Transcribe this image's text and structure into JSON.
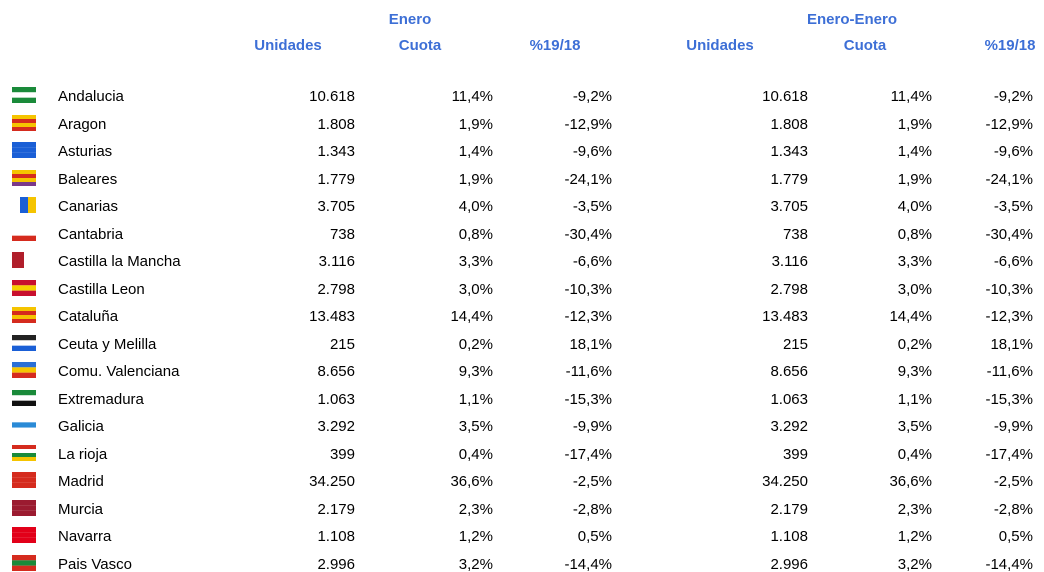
{
  "table": {
    "groups": [
      "Enero",
      "Enero-Enero"
    ],
    "columns": [
      "Unidades",
      "Cuota",
      "%19/18",
      "Unidades",
      "Cuota",
      "%19/18"
    ],
    "rows": [
      [
        "Andalucia",
        "10.618",
        "11,4%",
        "-9,2%",
        "10.618",
        "11,4%",
        "-9,2%"
      ],
      [
        "Aragon",
        "1.808",
        "1,9%",
        "-12,9%",
        "1.808",
        "1,9%",
        "-12,9%"
      ],
      [
        "Asturias",
        "1.343",
        "1,4%",
        "-9,6%",
        "1.343",
        "1,4%",
        "-9,6%"
      ],
      [
        "Baleares",
        "1.779",
        "1,9%",
        "-24,1%",
        "1.779",
        "1,9%",
        "-24,1%"
      ],
      [
        "Canarias",
        "3.705",
        "4,0%",
        "-3,5%",
        "3.705",
        "4,0%",
        "-3,5%"
      ],
      [
        "Cantabria",
        "738",
        "0,8%",
        "-30,4%",
        "738",
        "0,8%",
        "-30,4%"
      ],
      [
        "Castilla la Mancha",
        "3.116",
        "3,3%",
        "-6,6%",
        "3.116",
        "3,3%",
        "-6,6%"
      ],
      [
        "Castilla Leon",
        "2.798",
        "3,0%",
        "-10,3%",
        "2.798",
        "3,0%",
        "-10,3%"
      ],
      [
        "Cataluña",
        "13.483",
        "14,4%",
        "-12,3%",
        "13.483",
        "14,4%",
        "-12,3%"
      ],
      [
        "Ceuta y Melilla",
        "215",
        "0,2%",
        "18,1%",
        "215",
        "0,2%",
        "18,1%"
      ],
      [
        "Comu. Valenciana",
        "8.656",
        "9,3%",
        "-11,6%",
        "8.656",
        "9,3%",
        "-11,6%"
      ],
      [
        "Extremadura",
        "1.063",
        "1,1%",
        "-15,3%",
        "1.063",
        "1,1%",
        "-15,3%"
      ],
      [
        "Galicia",
        "3.292",
        "3,5%",
        "-9,9%",
        "3.292",
        "3,5%",
        "-9,9%"
      ],
      [
        "La rioja",
        "399",
        "0,4%",
        "-17,4%",
        "399",
        "0,4%",
        "-17,4%"
      ],
      [
        "Madrid",
        "34.250",
        "36,6%",
        "-2,5%",
        "34.250",
        "36,6%",
        "-2,5%"
      ],
      [
        "Murcia",
        "2.179",
        "2,3%",
        "-2,8%",
        "2.179",
        "2,3%",
        "-2,8%"
      ],
      [
        "Navarra",
        "1.108",
        "1,2%",
        "0,5%",
        "1.108",
        "1,2%",
        "0,5%"
      ],
      [
        "Pais Vasco",
        "2.996",
        "3,2%",
        "-14,4%",
        "2.996",
        "3,2%",
        "-14,4%"
      ]
    ]
  }
}
